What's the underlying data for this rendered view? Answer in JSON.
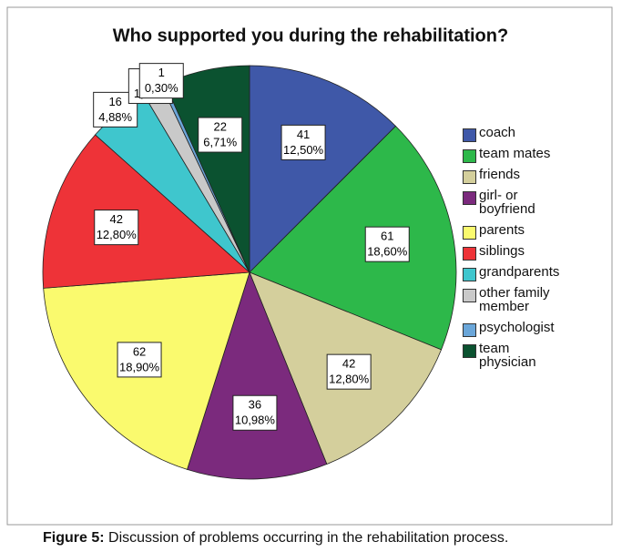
{
  "chart_data": {
    "type": "pie",
    "title": "Who supported you during the rehabilitation?",
    "categories": [
      "coach",
      "team mates",
      "friends",
      "girl- or boyfriend",
      "parents",
      "siblings",
      "grandparents",
      "other family member",
      "psychologist",
      "team physician"
    ],
    "values": [
      41,
      61,
      42,
      36,
      62,
      42,
      16,
      5,
      1,
      22
    ],
    "percent_labels": [
      "12,50%",
      "18,60%",
      "12,80%",
      "10,98%",
      "18,90%",
      "12,80%",
      "4,88%",
      "1,52%",
      "0,30%",
      "6,71%"
    ],
    "colors": [
      "#3f58a8",
      "#2db84a",
      "#d4cf9c",
      "#7b2a7d",
      "#fafa6e",
      "#ee3338",
      "#3fc6cd",
      "#c9c9c9",
      "#6aa6d9",
      "#0b5230"
    ],
    "legend": "right"
  },
  "caption": {
    "label": "Figure 5:",
    "text": " Discussion of problems occurring in the rehabilitation process."
  }
}
